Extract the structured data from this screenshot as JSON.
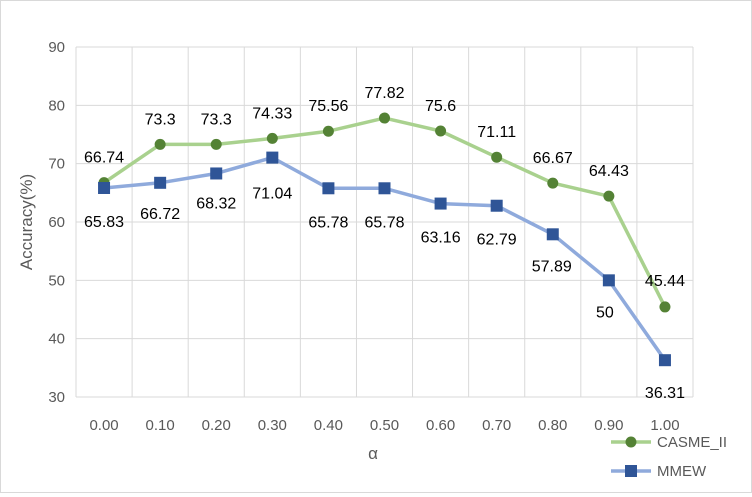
{
  "chart_data": {
    "type": "line",
    "title": "",
    "xlabel": "α",
    "ylabel": "Accuracy(%)",
    "ylim": [
      30,
      90
    ],
    "yticks": [
      30,
      40,
      50,
      60,
      70,
      80,
      90
    ],
    "grid": true,
    "legend_position": "bottom-right",
    "categories": [
      "0.00",
      "0.10",
      "0.20",
      "0.30",
      "0.40",
      "0.50",
      "0.60",
      "0.70",
      "0.80",
      "0.90",
      "1.00"
    ],
    "series": [
      {
        "name": "CASME_II",
        "color": "#a9d18e",
        "marker_color": "#548235",
        "marker": "circle",
        "values": [
          66.74,
          73.3,
          73.3,
          74.33,
          75.56,
          77.82,
          75.6,
          71.11,
          66.67,
          64.43,
          45.44
        ],
        "labels": [
          "66.74",
          "73.3",
          "73.3",
          "74.33",
          "75.56",
          "77.82",
          "75.6",
          "71.11",
          "66.67",
          "64.43",
          "45.44"
        ]
      },
      {
        "name": "MMEW",
        "color": "#8faadc",
        "marker_color": "#2f5597",
        "marker": "square",
        "values": [
          65.83,
          66.72,
          68.32,
          71.04,
          65.78,
          65.78,
          63.16,
          62.79,
          57.89,
          50,
          36.31
        ],
        "labels": [
          "65.83",
          "66.72",
          "68.32",
          "71.04",
          "65.78",
          "65.78",
          "63.16",
          "62.79",
          "57.89",
          "50",
          "36.31"
        ]
      }
    ]
  }
}
